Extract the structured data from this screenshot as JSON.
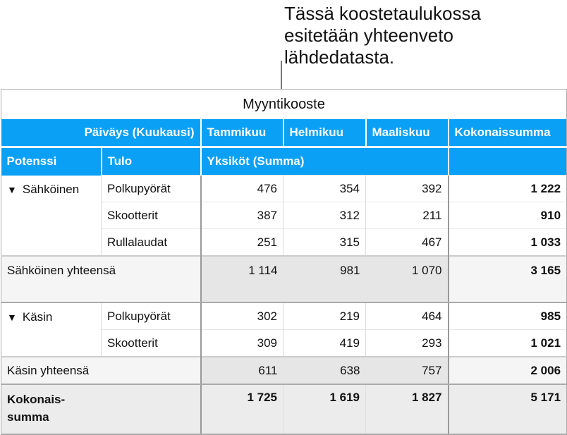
{
  "callout": {
    "lines": [
      "Tässä koostetaulukossa",
      "esitetään yhteenveto",
      "lähdedatasta."
    ]
  },
  "table": {
    "title": "Myyntikooste",
    "column_field": "Päiväys (Kuukausi)",
    "columns": [
      "Tammikuu",
      "Helmikuu",
      "Maaliskuu",
      "Kokonaissumma"
    ],
    "row_fields": [
      "Potenssi",
      "Tulo"
    ],
    "value_field": "Yksiköt (Summa)",
    "header_color": "#0aa0f5",
    "groups": [
      {
        "name": "Sähköinen",
        "rows": [
          {
            "label": "Polkupyörät",
            "values": [
              "476",
              "354",
              "392",
              "1 222"
            ]
          },
          {
            "label": "Skootterit",
            "values": [
              "387",
              "312",
              "211",
              "910"
            ]
          },
          {
            "label": "Rullalaudat",
            "values": [
              "251",
              "315",
              "467",
              "1 033"
            ]
          }
        ],
        "subtotal_label": "Sähköinen yhteensä",
        "subtotal": [
          "1 114",
          "981",
          "1 070",
          "3 165"
        ]
      },
      {
        "name": "Käsin",
        "rows": [
          {
            "label": "Polkupyörät",
            "values": [
              "302",
              "219",
              "464",
              "985"
            ]
          },
          {
            "label": "Skootterit",
            "values": [
              "309",
              "419",
              "293",
              "1 021"
            ]
          }
        ],
        "subtotal_label": "Käsin yhteensä",
        "subtotal": [
          "611",
          "638",
          "757",
          "2 006"
        ]
      }
    ],
    "grand_total_label": "Kokonais-summa",
    "grand_total": [
      "1 725",
      "1 619",
      "1 827",
      "5 171"
    ]
  }
}
